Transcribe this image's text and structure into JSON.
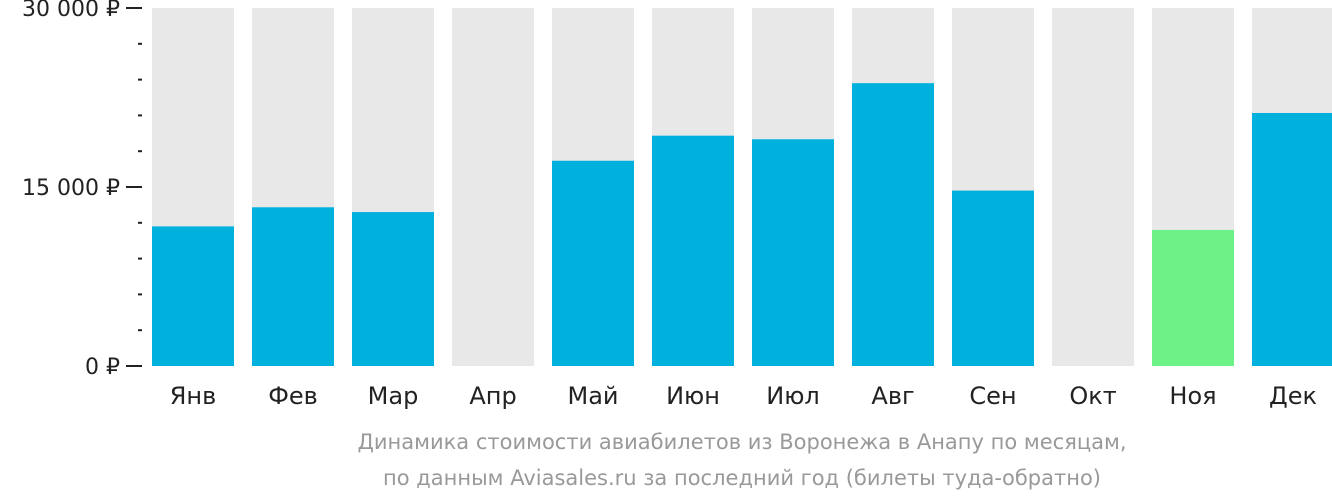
{
  "chart_data": {
    "type": "bar",
    "categories": [
      "Янв",
      "Фев",
      "Мар",
      "Апр",
      "Май",
      "Июн",
      "Июл",
      "Авг",
      "Сен",
      "Окт",
      "Ноя",
      "Дек"
    ],
    "values": [
      11700,
      13300,
      12900,
      null,
      17200,
      19300,
      19000,
      23700,
      14700,
      null,
      11400,
      21200
    ],
    "ylim": [
      0,
      30000
    ],
    "y_ticks": [
      {
        "value": 0,
        "label": "0 ₽"
      },
      {
        "value": 15000,
        "label": "15 000 ₽"
      },
      {
        "value": 30000,
        "label": "30 000 ₽"
      }
    ],
    "y_minor_step": 3000,
    "highlight_index": 10,
    "grid": false,
    "legend": "none"
  },
  "colors": {
    "bar": "#00b0dd",
    "bar_highlight": "#6cf286",
    "bar_track": "#e8e8e8",
    "axis": "#222222",
    "caption": "#999999"
  },
  "caption": {
    "line1": "Динамика стоимости авиабилетов из Воронежа в Анапу по месяцам,",
    "line2": "по данным Aviasales.ru за последний год (билеты туда-обратно)"
  }
}
